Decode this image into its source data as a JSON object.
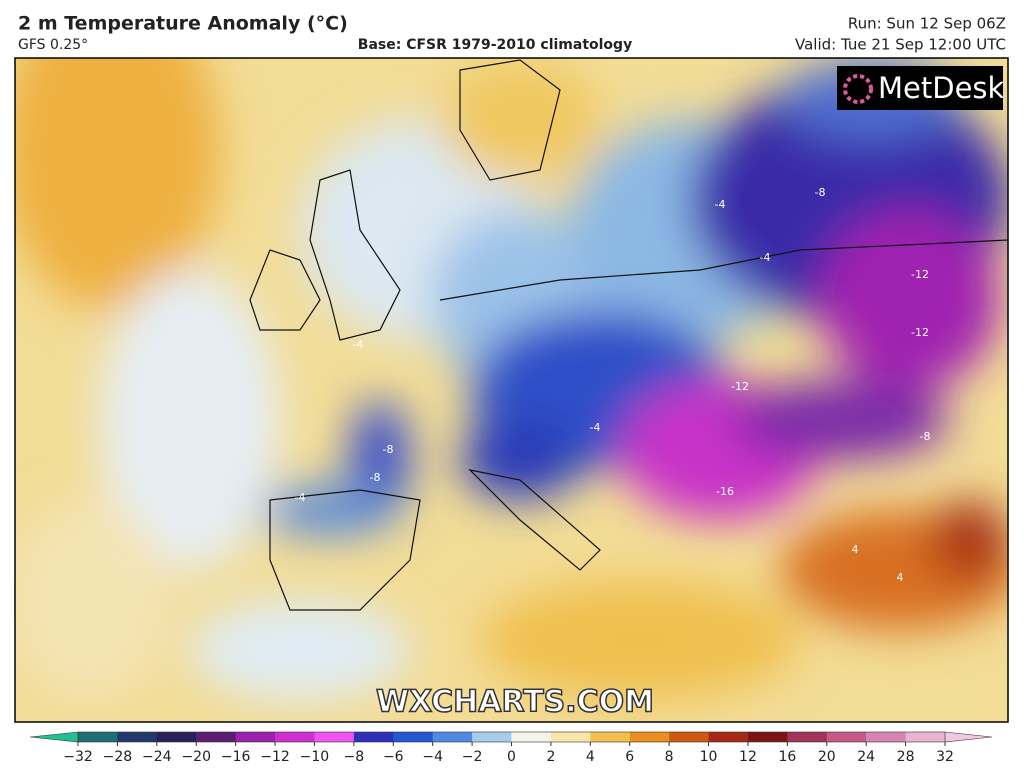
{
  "header": {
    "title": "2 m Temperature Anomaly (°C)",
    "model": "GFS 0.25°",
    "base": "Base: CFSR 1979-2010 climatology",
    "run": "Run: Sun 12 Sep 06Z",
    "valid": "Valid: Tue 21 Sep 12:00 UTC"
  },
  "logo": "MetDesk",
  "watermark": "WXCHARTS.COM",
  "contour_labels": [
    -8,
    -4,
    -4,
    -12,
    -12,
    -12,
    -8,
    -16,
    -8,
    -8,
    -4,
    -4,
    -4,
    4,
    4
  ],
  "colorbar": {
    "ticks": [
      {
        "value": -32,
        "label": "−32"
      },
      {
        "value": -28,
        "label": "−28"
      },
      {
        "value": -24,
        "label": "−24"
      },
      {
        "value": -20,
        "label": "−20"
      },
      {
        "value": -16,
        "label": "−16"
      },
      {
        "value": -12,
        "label": "−12"
      },
      {
        "value": -10,
        "label": "−10"
      },
      {
        "value": -8,
        "label": "−8"
      },
      {
        "value": -6,
        "label": "−6"
      },
      {
        "value": -4,
        "label": "−4"
      },
      {
        "value": -2,
        "label": "−2"
      },
      0,
      2,
      4,
      6,
      8,
      10,
      12,
      16,
      20,
      24,
      28,
      32
    ],
    "colors": [
      "#1e6f78",
      "#23386a",
      "#2a1f5a",
      "#5b1d72",
      "#9a22ad",
      "#cf2fcf",
      "#ee55ee",
      "#2f2fb8",
      "#2456d0",
      "#4f8ae0",
      "#a8ccec",
      "#f6f4e8",
      "#f8e6a8",
      "#f3c050",
      "#e88e22",
      "#cc5a12",
      "#a42a14",
      "#7c1414",
      "#a2345a",
      "#c45888",
      "#d884b0",
      "#e8b4d0"
    ],
    "under_color": "#20c090",
    "over_color": "#f0c8e0"
  }
}
